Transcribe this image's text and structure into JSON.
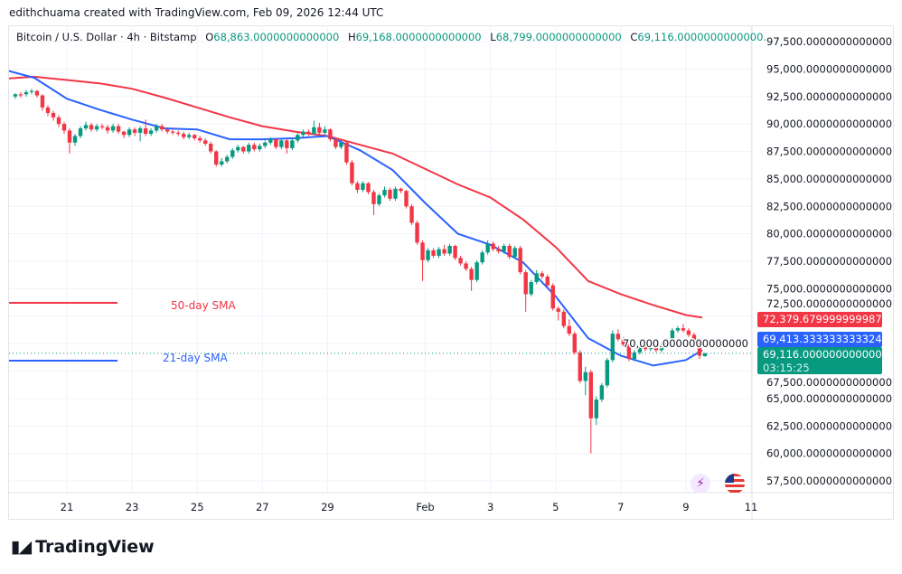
{
  "credit": "edithchuama created with TradingView.com, Feb 09, 2026 12:44 UTC",
  "legend": {
    "symbol": "Bitcoin / U.S. Dollar · 4h · Bitstamp",
    "open_label": "O",
    "open": "68,863.0000000000000",
    "high_label": "H",
    "high": "69,168.0000000000000",
    "low_label": "L",
    "low": "68,799.0000000000000",
    "close_label": "C",
    "close": "69,116.0000000000000..."
  },
  "badges": {
    "sma50": "72,379.6799999999872",
    "sma21": "69,413.3333333333248",
    "last_price": "69,116.0000000000000",
    "countdown": "03:15:25"
  },
  "annotations": {
    "sma50_label": "50-day SMA",
    "sma21_label": "21-day SMA"
  },
  "colors": {
    "up": "#089981",
    "down": "#f23645",
    "sma50": "#f23645",
    "sma21": "#2962ff",
    "grid": "#f0f3fa"
  },
  "icons": [
    "lightning-icon",
    "us-flag-icon"
  ],
  "logo": "TradingView",
  "chart_data": {
    "type": "candlestick",
    "interval": "4h",
    "ylim": [
      56000,
      99000
    ],
    "yticks": [
      "97,500.0000000000000",
      "95,000.0000000000000",
      "92,500.0000000000000",
      "90,000.0000000000000",
      "87,500.0000000000000",
      "85,000.0000000000000",
      "82,500.0000000000000",
      "80,000.0000000000000",
      "77,500.0000000000000",
      "75,000.0000000000000",
      "72,500.0000000000000",
      "70,000.0000000000000",
      "67,500.0000000000000",
      "65,000.0000000000000",
      "62,500.0000000000000",
      "60,000.0000000000000",
      "57,500.0000000000000"
    ],
    "xticks": [
      "21",
      "23",
      "25",
      "27",
      "29",
      "Feb",
      "3",
      "5",
      "7",
      "9",
      "11"
    ],
    "grid": true,
    "candles": [
      [
        92500,
        92800,
        92300,
        92700
      ],
      [
        92700,
        92900,
        92400,
        92600
      ],
      [
        92700,
        93100,
        92500,
        92900
      ],
      [
        92900,
        93200,
        92700,
        93000
      ],
      [
        93000,
        93100,
        92400,
        92600
      ],
      [
        92600,
        92700,
        91200,
        91500
      ],
      [
        91500,
        91700,
        90700,
        91000
      ],
      [
        91000,
        91200,
        90300,
        90600
      ],
      [
        90600,
        90800,
        89700,
        90000
      ],
      [
        90000,
        90200,
        89100,
        89400
      ],
      [
        89400,
        89600,
        87300,
        88300
      ],
      [
        88300,
        89100,
        88000,
        88900
      ],
      [
        88900,
        89800,
        88700,
        89600
      ],
      [
        89600,
        90200,
        89400,
        89900
      ],
      [
        89900,
        90100,
        89300,
        89500
      ],
      [
        89500,
        90000,
        89300,
        89800
      ],
      [
        89800,
        90000,
        89500,
        89700
      ],
      [
        89700,
        89900,
        89100,
        89400
      ],
      [
        89400,
        90000,
        89200,
        89800
      ],
      [
        89800,
        90000,
        89100,
        89300
      ],
      [
        89300,
        89400,
        88700,
        89000
      ],
      [
        89000,
        89700,
        88800,
        89500
      ],
      [
        89500,
        89700,
        88900,
        89200
      ],
      [
        89200,
        89800,
        88400,
        89600
      ],
      [
        89600,
        90400,
        88900,
        89100
      ],
      [
        89100,
        89600,
        88900,
        89400
      ],
      [
        89400,
        90000,
        89200,
        89800
      ],
      [
        89800,
        90000,
        89300,
        89500
      ],
      [
        89500,
        89700,
        89100,
        89300
      ],
      [
        89300,
        89500,
        89000,
        89200
      ],
      [
        89200,
        89400,
        88900,
        89100
      ],
      [
        89100,
        89300,
        88600,
        88800
      ],
      [
        88800,
        89200,
        88600,
        89000
      ],
      [
        89000,
        89100,
        88500,
        88700
      ],
      [
        88700,
        88900,
        88300,
        88500
      ],
      [
        88500,
        88700,
        88000,
        88200
      ],
      [
        88200,
        88400,
        87300,
        87500
      ],
      [
        87500,
        87600,
        86100,
        86300
      ],
      [
        86300,
        86900,
        86100,
        86600
      ],
      [
        86600,
        87200,
        86400,
        87000
      ],
      [
        87000,
        87800,
        86800,
        87600
      ],
      [
        87600,
        88100,
        87400,
        87900
      ],
      [
        87900,
        88000,
        87300,
        87500
      ],
      [
        87500,
        88300,
        87300,
        88100
      ],
      [
        88100,
        88300,
        87500,
        87700
      ],
      [
        87700,
        88200,
        87500,
        88000
      ],
      [
        88000,
        88500,
        87800,
        88300
      ],
      [
        88300,
        88800,
        88100,
        88600
      ],
      [
        88600,
        88700,
        87700,
        87900
      ],
      [
        87900,
        88700,
        87700,
        88500
      ],
      [
        88500,
        88600,
        87300,
        87800
      ],
      [
        87800,
        88700,
        87600,
        88500
      ],
      [
        88500,
        89200,
        88300,
        89000
      ],
      [
        89000,
        89500,
        88800,
        89300
      ],
      [
        89300,
        89500,
        88900,
        89100
      ],
      [
        89100,
        90300,
        89000,
        89700
      ],
      [
        89700,
        90100,
        89000,
        89200
      ],
      [
        89200,
        89800,
        89000,
        89500
      ],
      [
        89500,
        89600,
        88400,
        88600
      ],
      [
        88600,
        88800,
        87700,
        87900
      ],
      [
        87900,
        88500,
        87700,
        88300
      ],
      [
        88300,
        88400,
        86300,
        86500
      ],
      [
        86500,
        86700,
        84400,
        84600
      ],
      [
        84600,
        84800,
        83700,
        84000
      ],
      [
        84000,
        84800,
        83800,
        84600
      ],
      [
        84600,
        84700,
        83600,
        83800
      ],
      [
        83800,
        84000,
        81700,
        82700
      ],
      [
        82700,
        83700,
        82500,
        83500
      ],
      [
        83500,
        84300,
        83300,
        84000
      ],
      [
        84000,
        84200,
        83000,
        83200
      ],
      [
        83200,
        84300,
        83000,
        84100
      ],
      [
        84100,
        84200,
        83700,
        83900
      ],
      [
        83900,
        84000,
        82300,
        82500
      ],
      [
        82500,
        82700,
        80800,
        81000
      ],
      [
        81000,
        81200,
        79000,
        79200
      ],
      [
        79200,
        79400,
        75700,
        77600
      ],
      [
        77600,
        78700,
        77400,
        78500
      ],
      [
        78500,
        78700,
        77800,
        78000
      ],
      [
        78000,
        78800,
        77800,
        78600
      ],
      [
        78600,
        79000,
        78000,
        78200
      ],
      [
        78200,
        79100,
        78000,
        78900
      ],
      [
        78900,
        79000,
        77600,
        77800
      ],
      [
        77800,
        78000,
        77100,
        77300
      ],
      [
        77300,
        77500,
        76600,
        76800
      ],
      [
        76800,
        77000,
        74800,
        75800
      ],
      [
        75800,
        77600,
        75600,
        77400
      ],
      [
        77400,
        78500,
        77200,
        78300
      ],
      [
        78300,
        79400,
        78100,
        79100
      ],
      [
        79100,
        79300,
        78400,
        78600
      ],
      [
        78600,
        78900,
        78200,
        78400
      ],
      [
        78400,
        79100,
        78200,
        78900
      ],
      [
        78900,
        79100,
        77700,
        77900
      ],
      [
        77900,
        78900,
        77700,
        78700
      ],
      [
        78700,
        78900,
        76300,
        76500
      ],
      [
        76500,
        76700,
        72900,
        74500
      ],
      [
        74500,
        75800,
        74300,
        75600
      ],
      [
        75600,
        76700,
        75400,
        76400
      ],
      [
        76400,
        76600,
        75900,
        76100
      ],
      [
        76100,
        76300,
        75100,
        75300
      ],
      [
        75300,
        75500,
        73000,
        73200
      ],
      [
        73200,
        73400,
        72100,
        72900
      ],
      [
        72900,
        73100,
        71400,
        71600
      ],
      [
        71600,
        72200,
        70700,
        70900
      ],
      [
        70900,
        71100,
        69000,
        69200
      ],
      [
        69200,
        69400,
        66400,
        66600
      ],
      [
        66600,
        67900,
        65300,
        67400
      ],
      [
        67400,
        67600,
        60000,
        63200
      ],
      [
        63200,
        65200,
        62600,
        64900
      ],
      [
        64900,
        66400,
        64700,
        66200
      ],
      [
        66200,
        68700,
        66000,
        68500
      ],
      [
        68500,
        71200,
        68300,
        70900
      ],
      [
        70900,
        71300,
        70200,
        70400
      ],
      [
        70400,
        70600,
        69700,
        69900
      ],
      [
        69900,
        70200,
        68400,
        68600
      ],
      [
        68600,
        69400,
        68400,
        69200
      ],
      [
        69200,
        70000,
        69000,
        69800
      ],
      [
        69800,
        70000,
        69300,
        69500
      ],
      [
        69500,
        69800,
        69300,
        69600
      ],
      [
        69600,
        69800,
        69200,
        69400
      ],
      [
        69400,
        70000,
        69200,
        69800
      ],
      [
        69800,
        70500,
        69600,
        70300
      ],
      [
        70300,
        71400,
        70100,
        71200
      ],
      [
        71200,
        71600,
        71000,
        71400
      ],
      [
        71400,
        71800,
        71000,
        71200
      ],
      [
        71200,
        71400,
        70600,
        70800
      ],
      [
        70800,
        71000,
        70100,
        70300
      ],
      [
        70300,
        70500,
        68600,
        68900
      ],
      [
        68863,
        69168,
        68799,
        69116
      ]
    ],
    "series": [
      {
        "name": "50-day SMA",
        "dates": [
          "Jan 19",
          "Jan 20",
          "Jan 21",
          "Jan 22",
          "Jan 23",
          "Jan 24",
          "Jan 25",
          "Jan 26",
          "Jan 27",
          "Jan 28",
          "Jan 29",
          "Jan 30",
          "Jan 31",
          "Feb 1",
          "Feb 2",
          "Feb 3",
          "Feb 4",
          "Feb 5",
          "Feb 6",
          "Feb 7",
          "Feb 8",
          "Feb 9",
          "Feb 9 12:00"
        ],
        "values": [
          94100,
          94300,
          94000,
          93700,
          93200,
          92400,
          91500,
          90600,
          89800,
          89300,
          88900,
          88100,
          87300,
          85900,
          84500,
          83300,
          81300,
          78800,
          75700,
          74500,
          73500,
          72600,
          72380
        ]
      },
      {
        "name": "21-day SMA",
        "dates": [
          "Jan 19",
          "Jan 20",
          "Jan 21",
          "Jan 22",
          "Jan 23",
          "Jan 24",
          "Jan 25",
          "Jan 26",
          "Jan 27",
          "Jan 28",
          "Jan 29",
          "Jan 30",
          "Jan 31",
          "Feb 1",
          "Feb 2",
          "Feb 3",
          "Feb 4",
          "Feb 5",
          "Feb 6",
          "Feb 7",
          "Feb 8",
          "Feb 9",
          "Feb 9 12:00"
        ],
        "values": [
          95000,
          94200,
          92300,
          91300,
          90400,
          89600,
          89500,
          88600,
          88600,
          88700,
          88900,
          87600,
          85800,
          82800,
          80000,
          79000,
          77400,
          74300,
          70500,
          68900,
          68000,
          68500,
          69413
        ]
      }
    ]
  }
}
